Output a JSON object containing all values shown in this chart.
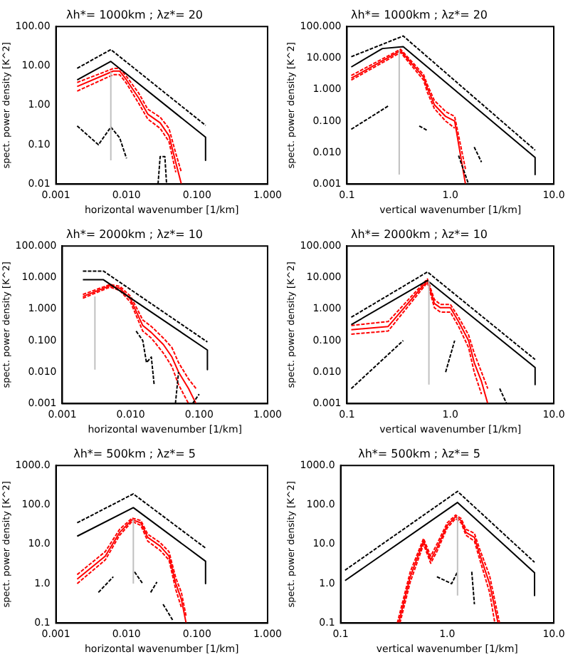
{
  "chart_data": [
    {
      "type": "line",
      "title": "λh*= 1000km ; λz*= 20",
      "xlabel": "horizontal wavenumber [1/km]",
      "ylabel": "spect. power density [K^2]",
      "log": "xy",
      "grid": false,
      "xlim": [
        0.001,
        1
      ],
      "xticks": [
        {
          "value": 0.001,
          "label": "0.001"
        },
        {
          "value": 0.01,
          "label": "0.010"
        },
        {
          "value": 0.1,
          "label": "0.100"
        },
        {
          "value": 1,
          "label": "1.000"
        }
      ],
      "ylim": [
        0.01,
        100
      ],
      "yticks": [
        {
          "value": 0.01,
          "label": "0.01"
        },
        {
          "value": 0.1,
          "label": "0.10"
        },
        {
          "value": 1,
          "label": "1.00"
        },
        {
          "value": 10,
          "label": "10.00"
        },
        {
          "value": 100,
          "label": "100.00"
        }
      ],
      "series": [
        {
          "color": "#c0c0c0",
          "x": [
            0.006,
            0.006
          ],
          "values": [
            0.04,
            7
          ]
        },
        {
          "color": "#000000",
          "x": [
            0.002,
            0.006,
            0.132,
            0.132
          ],
          "values": [
            4.4,
            13,
            0.155,
            0.04
          ]
        },
        {
          "color": "#000000",
          "line_style": "dashed",
          "x": [
            0.002,
            0.006,
            0.132
          ],
          "values": [
            8.7,
            26,
            0.31
          ]
        },
        {
          "color": "#000000",
          "line_style": "dashed",
          "x": [
            0.002,
            0.004,
            0.006,
            0.008,
            0.01,
            0.02,
            0.028,
            0.03,
            0.035,
            0.037
          ],
          "values": [
            0.3,
            0.1,
            0.28,
            0.15,
            0.045,
            null,
            0.01,
            0.05,
            0.05,
            0.01
          ]
        },
        {
          "color": "#ff0000",
          "x": [
            0.002,
            0.0065,
            0.008,
            0.01,
            0.015,
            0.02,
            0.03,
            0.04,
            0.05,
            0.06
          ],
          "values": [
            3,
            7.4,
            7.4,
            4.4,
            1.5,
            0.6,
            0.36,
            0.17,
            0.035,
            0.01
          ]
        },
        {
          "color": "#ff0000",
          "line_style": "dashed",
          "x": [
            0.002,
            0.0065,
            0.008,
            0.01,
            0.015,
            0.02,
            0.03,
            0.04,
            0.05
          ],
          "values": [
            2.3,
            6,
            6,
            3.6,
            1.1,
            0.45,
            0.26,
            0.12,
            0.02
          ]
        },
        {
          "color": "#ff0000",
          "line_style": "dashed",
          "x": [
            0.002,
            0.0065,
            0.008,
            0.01,
            0.015,
            0.02,
            0.03,
            0.04,
            0.05,
            0.06
          ],
          "values": [
            3.8,
            8.6,
            8.6,
            5.4,
            2,
            0.8,
            0.5,
            0.26,
            0.06,
            0.02
          ]
        }
      ]
    },
    {
      "type": "line",
      "title": "λh*= 1000km ; λz*= 20",
      "xlabel": "vertical wavenumber [1/km]",
      "ylabel": "spect. power density [K^2]",
      "log": "xy",
      "grid": false,
      "xlim": [
        0.1,
        10
      ],
      "xticks": [
        {
          "value": 0.1,
          "label": "0.1"
        },
        {
          "value": 1,
          "label": "1.0"
        },
        {
          "value": 10,
          "label": "10.0"
        }
      ],
      "ylim": [
        0.001,
        100
      ],
      "yticks": [
        {
          "value": 0.001,
          "label": "0.001"
        },
        {
          "value": 0.01,
          "label": "0.010"
        },
        {
          "value": 0.1,
          "label": "0.100"
        },
        {
          "value": 1,
          "label": "1.000"
        },
        {
          "value": 10,
          "label": "10.000"
        },
        {
          "value": 100,
          "label": "100.000"
        }
      ],
      "series": [
        {
          "color": "#c0c0c0",
          "x": [
            0.32,
            0.32
          ],
          "values": [
            0.002,
            17
          ]
        },
        {
          "color": "#000000",
          "x": [
            0.11,
            0.22,
            0.35,
            6.6,
            6.6
          ],
          "values": [
            5.2,
            20,
            23,
            0.007,
            0.002
          ]
        },
        {
          "color": "#000000",
          "line_style": "dashed",
          "x": [
            0.11,
            0.35,
            6.6
          ],
          "values": [
            11,
            50,
            0.012
          ]
        },
        {
          "color": "#000000",
          "line_style": "dashed",
          "x": [
            0.11,
            0.25,
            0.4,
            0.5,
            0.6,
            0.9,
            1.2,
            1.5,
            1.6,
            1.7,
            2.0
          ],
          "values": [
            0.055,
            0.3,
            null,
            0.07,
            0.05,
            null,
            0.008,
            0.001,
            null,
            0.015,
            0.005
          ]
        },
        {
          "color": "#ff0000",
          "x": [
            0.11,
            0.33,
            0.55,
            0.6,
            0.7,
            0.9,
            1.1,
            1.4
          ],
          "values": [
            2.3,
            17,
            2.5,
            1.1,
            0.33,
            0.14,
            0.1,
            0.001
          ]
        },
        {
          "color": "#ff0000",
          "line_style": "dashed",
          "x": [
            0.11,
            0.33,
            0.55,
            0.6,
            0.7,
            0.9,
            1.1
          ],
          "values": [
            2,
            15,
            2,
            0.8,
            0.25,
            0.1,
            0.06
          ]
        },
        {
          "color": "#ff0000",
          "line_style": "dashed",
          "x": [
            0.11,
            0.33,
            0.55,
            0.6,
            0.7,
            0.9,
            1.1,
            1.4
          ],
          "values": [
            2.8,
            19,
            3,
            1.4,
            0.45,
            0.2,
            0.14,
            0.003
          ]
        }
      ]
    },
    {
      "type": "line",
      "title": "λh*= 2000km ; λz*= 10",
      "xlabel": "horizontal wavenumber [1/km]",
      "ylabel": "spect. power density [K^2]",
      "log": "xy",
      "grid": false,
      "xlim": [
        0.001,
        1
      ],
      "xticks": [
        {
          "value": 0.001,
          "label": "0.001"
        },
        {
          "value": 0.01,
          "label": "0.010"
        },
        {
          "value": 0.1,
          "label": "0.100"
        },
        {
          "value": 1,
          "label": "1.000"
        }
      ],
      "ylim": [
        0.001,
        100
      ],
      "yticks": [
        {
          "value": 0.001,
          "label": "0.001"
        },
        {
          "value": 0.01,
          "label": "0.010"
        },
        {
          "value": 0.1,
          "label": "0.100"
        },
        {
          "value": 1,
          "label": "1.000"
        },
        {
          "value": 10,
          "label": "10.000"
        },
        {
          "value": 100,
          "label": "100.000"
        }
      ],
      "series": [
        {
          "color": "#c0c0c0",
          "x": [
            0.003,
            0.003
          ],
          "values": [
            0.012,
            2.5
          ]
        },
        {
          "color": "#000000",
          "x": [
            0.002,
            0.004,
            0.132,
            0.132
          ],
          "values": [
            8.5,
            8.5,
            0.05,
            0.012
          ]
        },
        {
          "color": "#000000",
          "line_style": "dashed",
          "x": [
            0.002,
            0.004,
            0.132
          ],
          "values": [
            16,
            16,
            0.09
          ]
        },
        {
          "color": "#000000",
          "line_style": "dashed",
          "x": [
            0.012,
            0.015,
            0.017,
            0.02,
            0.022,
            0.03,
            0.045,
            0.05,
            0.07,
            0.08,
            0.1
          ],
          "values": [
            0.2,
            0.1,
            0.02,
            0.03,
            0.004,
            null,
            0.001,
            0.01,
            null,
            0.001,
            0.002
          ]
        },
        {
          "color": "#ff0000",
          "x": [
            0.002,
            0.005,
            0.007,
            0.01,
            0.015,
            0.02,
            0.03,
            0.04,
            0.05,
            0.07,
            0.09
          ],
          "values": [
            2.5,
            5.5,
            4.5,
            2,
            0.3,
            0.18,
            0.075,
            0.03,
            0.01,
            0.003,
            0.001
          ]
        },
        {
          "color": "#ff0000",
          "line_style": "dashed",
          "x": [
            0.002,
            0.005,
            0.007,
            0.01,
            0.015,
            0.02,
            0.03,
            0.04,
            0.05,
            0.07
          ],
          "values": [
            2.2,
            5,
            3.8,
            1.6,
            0.2,
            0.12,
            0.04,
            0.015,
            0.004,
            0.001
          ]
        },
        {
          "color": "#ff0000",
          "line_style": "dashed",
          "x": [
            0.002,
            0.005,
            0.007,
            0.01,
            0.015,
            0.02,
            0.03,
            0.04,
            0.05,
            0.07,
            0.09
          ],
          "values": [
            2.9,
            6,
            5.2,
            2.5,
            0.45,
            0.28,
            0.12,
            0.06,
            0.02,
            0.006,
            0.003
          ]
        }
      ]
    },
    {
      "type": "line",
      "title": "λh*= 2000km ; λz*= 10",
      "xlabel": "vertical wavenumber [1/km]",
      "ylabel": "spect. power density [K^2]",
      "log": "xy",
      "grid": false,
      "xlim": [
        0.1,
        10
      ],
      "xticks": [
        {
          "value": 0.1,
          "label": "0.1"
        },
        {
          "value": 1,
          "label": "1.0"
        },
        {
          "value": 10,
          "label": "10.0"
        }
      ],
      "ylim": [
        0.001,
        100
      ],
      "yticks": [
        {
          "value": 0.001,
          "label": "0.001"
        },
        {
          "value": 0.01,
          "label": "0.010"
        },
        {
          "value": 0.1,
          "label": "0.100"
        },
        {
          "value": 1,
          "label": "1.000"
        },
        {
          "value": 10,
          "label": "10.000"
        },
        {
          "value": 100,
          "label": "100.000"
        }
      ],
      "series": [
        {
          "color": "#c0c0c0",
          "x": [
            0.62,
            0.62
          ],
          "values": [
            0.004,
            8
          ]
        },
        {
          "color": "#000000",
          "x": [
            0.11,
            0.6,
            6.6,
            6.6
          ],
          "values": [
            0.32,
            8,
            0.014,
            0.004
          ]
        },
        {
          "color": "#000000",
          "line_style": "dashed",
          "x": [
            0.11,
            0.6,
            6.6
          ],
          "values": [
            0.55,
            15,
            0.025
          ]
        },
        {
          "color": "#000000",
          "line_style": "dashed",
          "x": [
            0.11,
            0.35,
            0.5,
            0.9,
            1.1,
            2,
            3,
            3.5
          ],
          "values": [
            0.003,
            0.1,
            null,
            0.01,
            0.1,
            null,
            0.003,
            0.001
          ]
        },
        {
          "color": "#ff0000",
          "x": [
            0.11,
            0.25,
            0.6,
            0.7,
            0.8,
            1.0,
            1.2,
            1.5,
            1.7,
            2,
            2.3
          ],
          "values": [
            0.22,
            0.28,
            8,
            1.5,
            1.1,
            1.1,
            0.4,
            0.1,
            0.02,
            0.005,
            0.001
          ]
        },
        {
          "color": "#ff0000",
          "line_style": "dashed",
          "x": [
            0.11,
            0.25,
            0.6,
            0.7,
            0.8,
            1.0,
            1.2,
            1.5,
            1.7,
            2
          ],
          "values": [
            0.16,
            0.2,
            7,
            1.1,
            0.8,
            0.8,
            0.28,
            0.06,
            0.01,
            0.002
          ]
        },
        {
          "color": "#ff0000",
          "line_style": "dashed",
          "x": [
            0.11,
            0.25,
            0.6,
            0.7,
            0.8,
            1.0,
            1.2,
            1.5,
            1.7,
            2,
            2.3
          ],
          "values": [
            0.3,
            0.4,
            9,
            2,
            1.4,
            1.4,
            0.55,
            0.15,
            0.04,
            0.01,
            0.003
          ]
        }
      ]
    },
    {
      "type": "line",
      "title": "λh*= 500km ; λz*= 5",
      "xlabel": "horizontal wavenumber [1/km]",
      "ylabel": "spect. power density [K^2]",
      "log": "xy",
      "grid": false,
      "xlim": [
        0.001,
        1
      ],
      "xticks": [
        {
          "value": 0.001,
          "label": "0.001"
        },
        {
          "value": 0.01,
          "label": "0.010"
        },
        {
          "value": 0.1,
          "label": "0.100"
        },
        {
          "value": 1,
          "label": "1.000"
        }
      ],
      "ylim": [
        0.1,
        1000
      ],
      "yticks": [
        {
          "value": 0.1,
          "label": "0.1"
        },
        {
          "value": 1,
          "label": "1.0"
        },
        {
          "value": 10,
          "label": "10.0"
        },
        {
          "value": 100,
          "label": "100.0"
        },
        {
          "value": 1000,
          "label": "1000.0"
        }
      ],
      "series": [
        {
          "color": "#c0c0c0",
          "x": [
            0.0125,
            0.0125
          ],
          "values": [
            1,
            42
          ]
        },
        {
          "color": "#000000",
          "x": [
            0.002,
            0.0125,
            0.132,
            0.132
          ],
          "values": [
            16,
            85,
            3.7,
            1
          ]
        },
        {
          "color": "#000000",
          "line_style": "dashed",
          "x": [
            0.002,
            0.0125,
            0.132
          ],
          "values": [
            35,
            190,
            8
          ]
        },
        {
          "color": "#000000",
          "line_style": "dashed",
          "x": [
            0.004,
            0.0065,
            0.01,
            0.013,
            0.017,
            0.02,
            0.022,
            0.027,
            0.03,
            0.033,
            0.045
          ],
          "values": [
            0.6,
            1.5,
            null,
            2,
            1,
            null,
            0.6,
            1.1,
            null,
            0.3,
            0.12
          ]
        },
        {
          "color": "#ff0000",
          "x": [
            0.002,
            0.005,
            0.008,
            0.012,
            0.016,
            0.02,
            0.03,
            0.04,
            0.05,
            0.06,
            0.07
          ],
          "values": [
            1.3,
            5,
            20,
            42,
            35,
            15,
            9,
            5,
            1,
            0.4,
            0.1
          ]
        },
        {
          "color": "#ff0000",
          "line_style": "dashed",
          "x": [
            0.002,
            0.005,
            0.008,
            0.012,
            0.016,
            0.02,
            0.03,
            0.04,
            0.05,
            0.06
          ],
          "values": [
            1,
            4,
            17,
            38,
            30,
            12,
            7,
            4,
            0.7,
            0.25
          ]
        },
        {
          "color": "#ff0000",
          "line_style": "dashed",
          "x": [
            0.002,
            0.005,
            0.008,
            0.012,
            0.016,
            0.02,
            0.03,
            0.04,
            0.05,
            0.06,
            0.07
          ],
          "values": [
            1.7,
            6.5,
            24,
            46,
            40,
            18,
            11,
            6.5,
            1.4,
            0.6,
            0.15
          ]
        }
      ]
    },
    {
      "type": "line",
      "title": "λh*= 500km ; λz*= 5",
      "xlabel": "vertical wavenumber [1/km]",
      "ylabel": "spect. power density [K^2]",
      "log": "xy",
      "grid": false,
      "xlim": [
        0.1,
        10
      ],
      "xticks": [
        {
          "value": 0.1,
          "label": "0.1"
        },
        {
          "value": 1,
          "label": "1.0"
        },
        {
          "value": 10,
          "label": "10.0"
        }
      ],
      "ylim": [
        0.1,
        1000
      ],
      "yticks": [
        {
          "value": 0.1,
          "label": "0.1"
        },
        {
          "value": 1,
          "label": "1.0"
        },
        {
          "value": 10,
          "label": "10.0"
        },
        {
          "value": 100,
          "label": "100.0"
        },
        {
          "value": 1000,
          "label": "1000.0"
        }
      ],
      "series": [
        {
          "color": "#c0c0c0",
          "x": [
            1.25,
            1.25
          ],
          "values": [
            0.5,
            50
          ]
        },
        {
          "color": "#000000",
          "x": [
            0.11,
            1.25,
            6.6,
            6.6
          ],
          "values": [
            1.2,
            115,
            1.9,
            0.5
          ]
        },
        {
          "color": "#000000",
          "line_style": "dashed",
          "x": [
            0.11,
            1.25,
            6.6
          ],
          "values": [
            2.2,
            220,
            3.5
          ]
        },
        {
          "color": "#000000",
          "line_style": "dashed",
          "x": [
            0.8,
            1.1,
            1.25,
            1.5,
            1.7,
            1.8
          ],
          "values": [
            1.5,
            1.0,
            2,
            null,
            2,
            0.3
          ]
        },
        {
          "color": "#ff0000",
          "x": [
            0.35,
            0.45,
            0.6,
            0.7,
            0.8,
            1.0,
            1.2,
            1.35,
            1.5,
            1.8,
            2.0,
            2.5,
            3
          ],
          "values": [
            0.1,
            1.5,
            12,
            4,
            8,
            30,
            50,
            40,
            20,
            15,
            6,
            1,
            0.1
          ]
        },
        {
          "color": "#ff0000",
          "line_style": "dashed",
          "x": [
            0.36,
            0.45,
            0.6,
            0.7,
            0.8,
            1.0,
            1.2,
            1.35,
            1.5,
            1.8,
            2.0,
            2.5,
            2.8
          ],
          "values": [
            0.1,
            1.1,
            10,
            3.3,
            6.5,
            26,
            45,
            35,
            17,
            12,
            4.5,
            0.6,
            0.1
          ]
        },
        {
          "color": "#ff0000",
          "line_style": "dashed",
          "x": [
            0.34,
            0.45,
            0.6,
            0.7,
            0.8,
            1.0,
            1.2,
            1.35,
            1.5,
            1.8,
            2.0,
            2.5,
            3.1
          ],
          "values": [
            0.1,
            2,
            14,
            5,
            10,
            35,
            55,
            45,
            24,
            19,
            8,
            1.6,
            0.1
          ]
        }
      ]
    }
  ]
}
